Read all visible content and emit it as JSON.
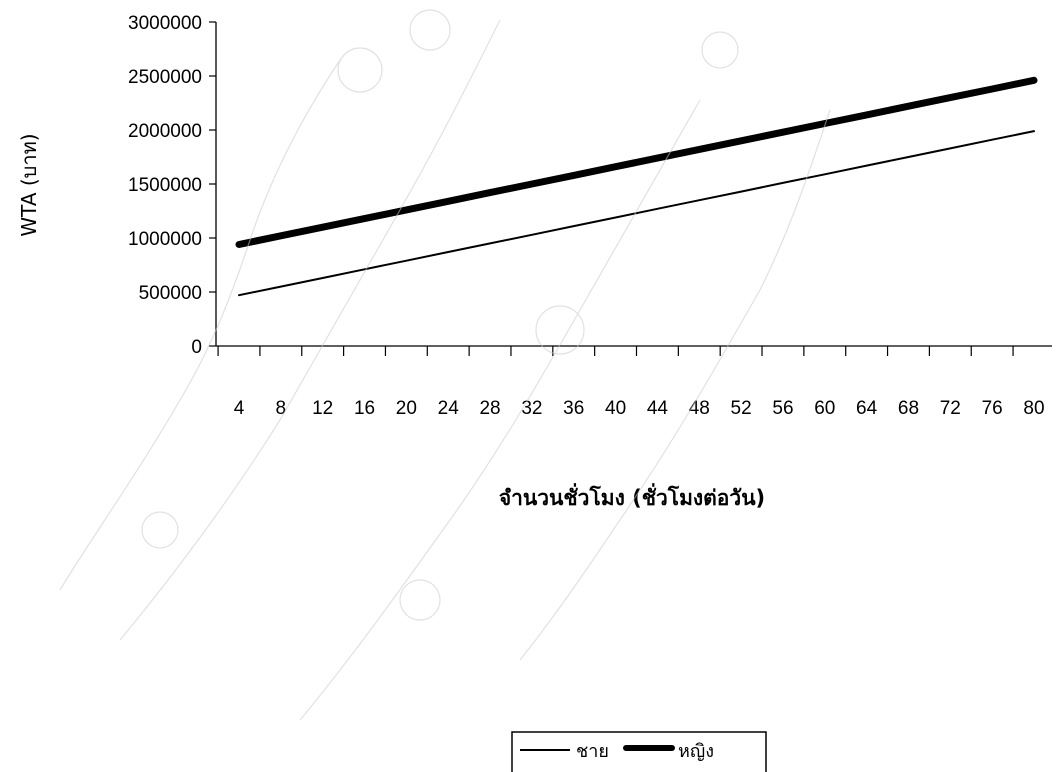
{
  "chart_data": {
    "type": "line",
    "title": "",
    "xlabel": "จำนวนชั่วโมง (ชั่วโมงต่อวัน)",
    "ylabel": "WTA  (บาท)",
    "x": [
      4,
      8,
      12,
      16,
      20,
      24,
      28,
      32,
      36,
      40,
      44,
      48,
      52,
      56,
      60,
      64,
      68,
      72,
      76,
      80
    ],
    "x_tick_labels": [
      "4",
      "8",
      "12",
      "16",
      "20",
      "24",
      "28",
      "32",
      "36",
      "40",
      "44",
      "48",
      "52",
      "56",
      "60",
      "64",
      "68",
      "72",
      "76",
      "80"
    ],
    "ylim": [
      0,
      3000000
    ],
    "y_ticks": [
      0,
      500000,
      1000000,
      1500000,
      2000000,
      2500000,
      3000000
    ],
    "y_tick_labels": [
      "0",
      "500000",
      "1000000",
      "1500000",
      "2000000",
      "2500000",
      "3000000"
    ],
    "series": [
      {
        "name": "ชาย",
        "color": "#000000",
        "style": "thin",
        "values": [
          470000,
          550000,
          630000,
          710000,
          790000,
          870000,
          950000,
          1030000,
          1110000,
          1190000,
          1270000,
          1350000,
          1430000,
          1510000,
          1590000,
          1670000,
          1750000,
          1830000,
          1910000,
          1990000
        ]
      },
      {
        "name": "หญิง",
        "color": "#000000",
        "style": "thick",
        "values": [
          940000,
          1020000,
          1100000,
          1180000,
          1260000,
          1340000,
          1420000,
          1500000,
          1580000,
          1660000,
          1740000,
          1820000,
          1900000,
          1980000,
          2060000,
          2140000,
          2220000,
          2300000,
          2380000,
          2460000
        ]
      }
    ],
    "grid": false,
    "legend": "bottom"
  }
}
